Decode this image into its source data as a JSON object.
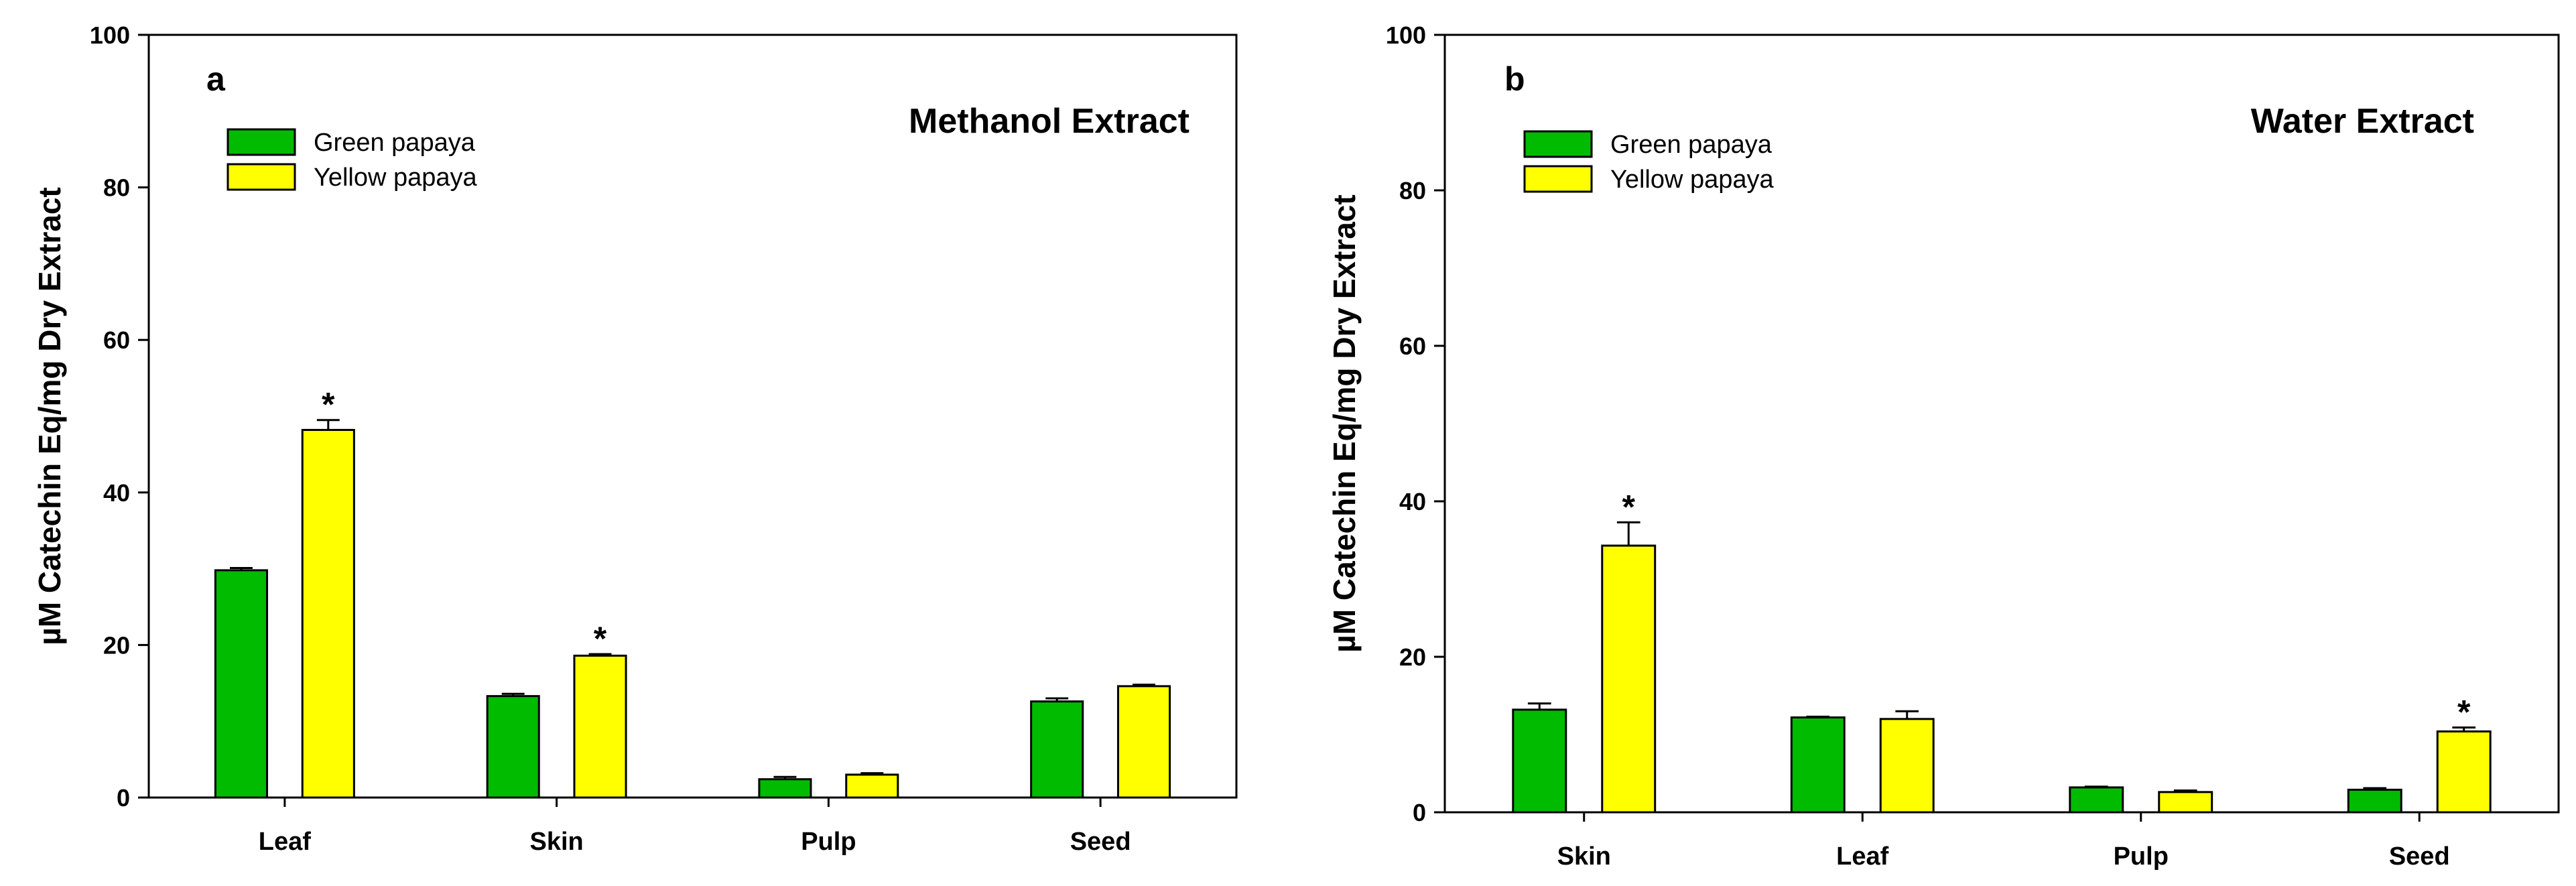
{
  "colors": {
    "green": "#00BB00",
    "yellow": "#FFFF00",
    "outline": "#000000"
  },
  "chart_data": [
    {
      "type": "bar",
      "panel_label": "a",
      "title": "Methanol Extract",
      "ylabel": "µM Catechin Eq/mg Dry Extract",
      "ylim": [
        0,
        100
      ],
      "yticks": [
        0,
        20,
        40,
        60,
        80,
        100
      ],
      "legend_position": "top-left",
      "categories": [
        "Leaf",
        "Skin",
        "Pulp",
        "Seed"
      ],
      "series": [
        {
          "name": "Green papaya",
          "color": "#00BB00",
          "values": [
            29.8,
            13.3,
            2.4,
            12.6
          ],
          "errors": [
            0.3,
            0.3,
            0.3,
            0.4
          ]
        },
        {
          "name": "Yellow papaya",
          "color": "#FFFF00",
          "values": [
            48.2,
            18.6,
            3.0,
            14.6
          ],
          "errors": [
            1.3,
            0.2,
            0.2,
            0.2
          ]
        }
      ],
      "significance": [
        {
          "series": 1,
          "category": 0,
          "mark": "*"
        },
        {
          "series": 1,
          "category": 1,
          "mark": "*"
        }
      ]
    },
    {
      "type": "bar",
      "panel_label": "b",
      "title": "Water Extract",
      "ylabel": "µM Catechin Eq/mg Dry Extract",
      "ylim": [
        0,
        100
      ],
      "yticks": [
        0,
        20,
        40,
        60,
        80,
        100
      ],
      "legend_position": "top-left",
      "categories": [
        "Skin",
        "Leaf",
        "Pulp",
        "Seed"
      ],
      "series": [
        {
          "name": "Green papaya",
          "color": "#00BB00",
          "values": [
            13.2,
            12.2,
            3.2,
            2.9
          ],
          "errors": [
            0.8,
            0.1,
            0.1,
            0.2
          ]
        },
        {
          "name": "Yellow papaya",
          "color": "#FFFF00",
          "values": [
            34.3,
            12.0,
            2.6,
            10.4
          ],
          "errors": [
            3.0,
            1.0,
            0.2,
            0.5
          ]
        }
      ],
      "significance": [
        {
          "series": 1,
          "category": 0,
          "mark": "*"
        },
        {
          "series": 1,
          "category": 3,
          "mark": "*"
        }
      ]
    }
  ]
}
